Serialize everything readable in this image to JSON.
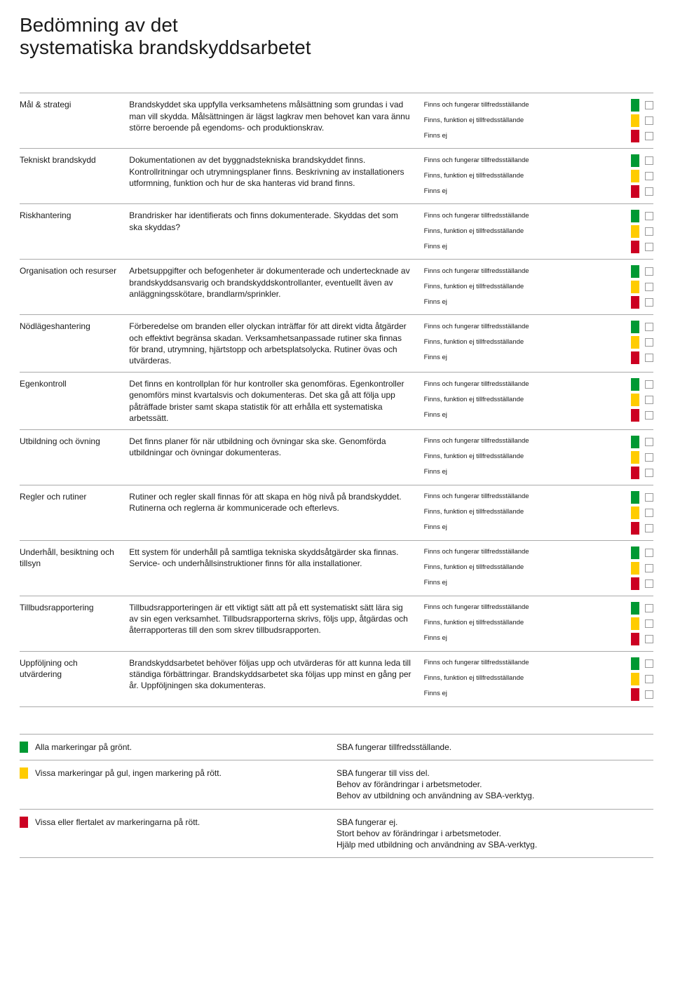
{
  "colors": {
    "green": "#009933",
    "yellow": "#ffcc00",
    "red": "#cc0022",
    "rule": "#aaaaaa",
    "text": "#1a1a1a",
    "background": "#ffffff"
  },
  "fonts": {
    "title_size_pt": 28,
    "body_size_pt": 12,
    "option_size_pt": 9.5,
    "family": "Arial"
  },
  "title": "Bedömning av det\nsystematiska brandskyddsarbetet",
  "assessment_options": {
    "good": "Finns och fungerar tillfredsställande",
    "partial": "Finns, funktion ej tillfredsställande",
    "none": "Finns ej"
  },
  "rows": [
    {
      "category": "Mål & strategi",
      "description": "Brandskyddet ska uppfylla verksamhetens målsättning som grundas i vad man vill skydda. Målsättningen är lägst lagkrav men behovet kan vara ännu större beroende på egendoms- och produktionskrav."
    },
    {
      "category": "Tekniskt brandskydd",
      "description": "Dokumentationen av det byggnadstekniska brandskyddet finns. Kontrollritningar och utrymningsplaner finns. Beskrivning av installationers utformning, funktion och hur de ska hanteras vid brand finns."
    },
    {
      "category": "Riskhantering",
      "description": "Brandrisker har identifierats och finns dokumenterade. Skyddas det som ska skyddas?"
    },
    {
      "category": "Organisation och resurser",
      "description": "Arbetsuppgifter och befogenheter är dokumenterade och undertecknade av brandskyddsansvarig och brandskyddskontrollanter, eventuellt även av anläggningsskötare, brandlarm/sprinkler."
    },
    {
      "category": "Nödlägeshantering",
      "description": "Förberedelse om branden eller olyckan inträffar för att direkt vidta åtgärder och effektivt begränsa skadan. Verksamhetsanpassade rutiner ska finnas för brand, utrymning, hjärtstopp och arbetsplatsolycka. Rutiner övas och utvärderas."
    },
    {
      "category": "Egenkontroll",
      "description": "Det finns en kontrollplan för hur kontroller ska genomföras. Egenkontroller genomförs minst kvartalsvis och dokumenteras. Det ska gå att följa upp påträffade brister samt skapa statistik för att erhålla ett systematiska arbetssätt."
    },
    {
      "category": "Utbildning och övning",
      "description": "Det finns planer för när utbildning och övningar ska ske. Genomförda utbildningar och övningar dokumenteras."
    },
    {
      "category": "Regler och rutiner",
      "description": "Rutiner och regler skall finnas för att skapa en hög nivå på brandskyddet. Rutinerna och reglerna är kommunicerade och efterlevs."
    },
    {
      "category": "Underhåll, besiktning och tillsyn",
      "description": "Ett system för underhåll på samtliga tekniska skyddsåtgärder ska finnas. Service- och underhållsinstruktioner finns för alla installationer."
    },
    {
      "category": "Tillbudsrapportering",
      "description": "Tillbudsrapporteringen är ett viktigt sätt att på ett systematiskt sätt lära sig av sin egen verksamhet. Tillbudsrapporterna skrivs, följs upp, åtgärdas och återrapporteras till den som skrev tillbudsrapporten."
    },
    {
      "category": "Uppföljning och utvärdering",
      "description": "Brandskyddsarbetet behöver följas upp och utvärderas för att kunna leda till ständiga förbättringar. Brandskyddsarbetet ska följas upp minst en gång per år. Uppföljningen ska dokumenteras."
    }
  ],
  "results": [
    {
      "color": "green",
      "condition": "Alla markeringar på grönt.",
      "outcome": "SBA fungerar tillfredsställande."
    },
    {
      "color": "yellow",
      "condition": "Vissa markeringar på gul, ingen markering på rött.",
      "outcome": "SBA fungerar till viss del.\nBehov av förändringar i arbetsmetoder.\nBehov av utbildning och användning av SBA-verktyg."
    },
    {
      "color": "red",
      "condition": "Vissa eller flertalet av markeringarna på rött.",
      "outcome": "SBA fungerar ej.\nStort behov av förändringar i arbetsmetoder.\nHjälp med utbildning och användning av SBA-verktyg."
    }
  ]
}
